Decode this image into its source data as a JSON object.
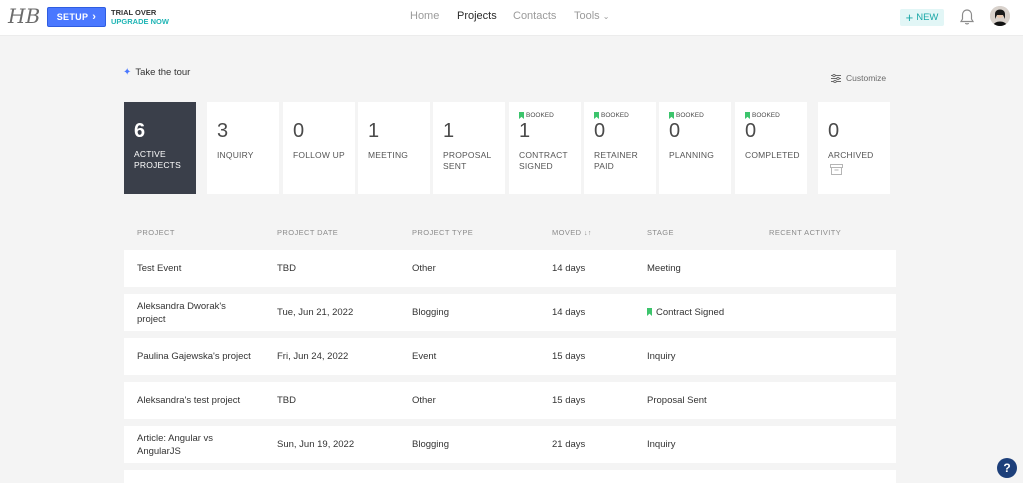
{
  "brand": {
    "logo_text": "HB"
  },
  "topbar": {
    "setup_label": "SETUP",
    "trial_line1": "TRIAL OVER",
    "trial_line2": "UPGRADE NOW",
    "nav": {
      "home": "Home",
      "projects": "Projects",
      "contacts": "Contacts",
      "tools": "Tools"
    },
    "new_label": "NEW"
  },
  "toolbar": {
    "tour_label": "Take the tour",
    "customize_label": "Customize"
  },
  "stages": [
    {
      "count": "6",
      "label": "ACTIVE PROJECTS",
      "booked": ""
    },
    {
      "count": "3",
      "label": "INQUIRY",
      "booked": ""
    },
    {
      "count": "0",
      "label": "FOLLOW UP",
      "booked": ""
    },
    {
      "count": "1",
      "label": "MEETING",
      "booked": ""
    },
    {
      "count": "1",
      "label": "PROPOSAL SENT",
      "booked": ""
    },
    {
      "count": "1",
      "label": "CONTRACT SIGNED",
      "booked": "BOOKED"
    },
    {
      "count": "0",
      "label": "RETAINER PAID",
      "booked": "BOOKED"
    },
    {
      "count": "0",
      "label": "PLANNING",
      "booked": "BOOKED"
    },
    {
      "count": "0",
      "label": "COMPLETED",
      "booked": "BOOKED"
    },
    {
      "count": "0",
      "label": "ARCHIVED",
      "booked": ""
    }
  ],
  "table": {
    "headers": {
      "project": "PROJECT",
      "date": "PROJECT DATE",
      "type": "PROJECT TYPE",
      "moved": "MOVED",
      "stage": "STAGE",
      "activity": "RECENT ACTIVITY"
    },
    "rows": [
      {
        "project": "Test Event",
        "date": "TBD",
        "type": "Other",
        "moved": "14 days",
        "stage": "Meeting"
      },
      {
        "project": "Aleksandra Dworak's project",
        "date": "Tue, Jun 21, 2022",
        "type": "Blogging",
        "moved": "14 days",
        "stage": "Contract Signed"
      },
      {
        "project": "Paulina Gajewska's project",
        "date": "Fri, Jun 24, 2022",
        "type": "Event",
        "moved": "15 days",
        "stage": "Inquiry"
      },
      {
        "project": "Aleksandra's test project",
        "date": "TBD",
        "type": "Other",
        "moved": "15 days",
        "stage": "Proposal Sent"
      },
      {
        "project": "Article: Angular vs AngularJS",
        "date": "Sun, Jun 19, 2022",
        "type": "Blogging",
        "moved": "21 days",
        "stage": "Inquiry"
      }
    ]
  },
  "help_label": "?"
}
